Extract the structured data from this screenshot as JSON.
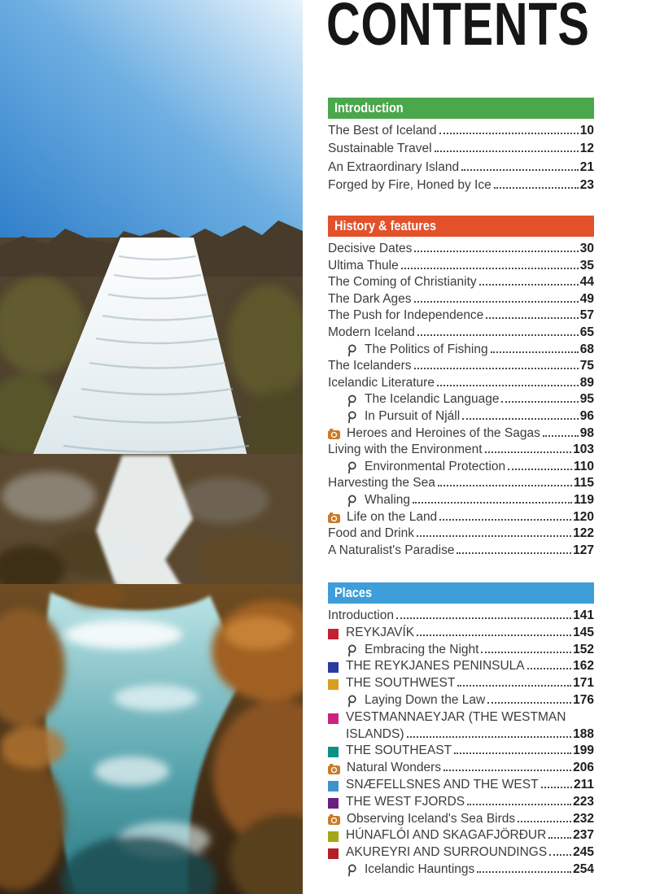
{
  "page_title": "CONTENTS",
  "photo": {
    "name": "waterfall-photo"
  },
  "icons": {
    "magnifier_color": "#3a3a3a",
    "camera_color": "#c87b28"
  },
  "sections": [
    {
      "label": "Introduction",
      "color": "#4aa74b",
      "entries": [
        {
          "type": "plain",
          "label": "The Best of Iceland",
          "page": "10"
        },
        {
          "type": "plain",
          "label": "Sustainable Travel",
          "page": "12"
        },
        {
          "type": "plain",
          "label": "An Extraordinary Island",
          "page": "21"
        },
        {
          "type": "plain",
          "label": "Forged by Fire, Honed by Ice",
          "page": "23"
        }
      ]
    },
    {
      "label": "History & features",
      "color": "#e2512a",
      "entries": [
        {
          "type": "plain",
          "label": "Decisive Dates",
          "page": "30"
        },
        {
          "type": "plain",
          "label": "Ultima Thule",
          "page": "35"
        },
        {
          "type": "plain",
          "label": "The Coming of Christianity",
          "page": "44"
        },
        {
          "type": "plain",
          "label": "The Dark Ages",
          "page": "49"
        },
        {
          "type": "plain",
          "label": "The Push for Independence",
          "page": "57"
        },
        {
          "type": "plain",
          "label": "Modern Iceland",
          "page": "65"
        },
        {
          "type": "magnifier",
          "label": "The Politics of Fishing",
          "page": "68"
        },
        {
          "type": "plain",
          "label": "The Icelanders",
          "page": "75"
        },
        {
          "type": "plain",
          "label": "Icelandic Literature",
          "page": "89"
        },
        {
          "type": "magnifier",
          "label": "The Icelandic Language",
          "page": "95"
        },
        {
          "type": "magnifier",
          "label": "In Pursuit of Njáll",
          "page": "96"
        },
        {
          "type": "photo",
          "label": "Heroes and Heroines of the Sagas",
          "page": "98"
        },
        {
          "type": "plain",
          "label": "Living with the Environment",
          "page": "103"
        },
        {
          "type": "magnifier",
          "label": "Environmental Protection",
          "page": "110"
        },
        {
          "type": "plain",
          "label": "Harvesting the Sea",
          "page": "115"
        },
        {
          "type": "magnifier",
          "label": "Whaling",
          "page": "119"
        },
        {
          "type": "photo",
          "label": "Life on the Land",
          "page": "120"
        },
        {
          "type": "plain",
          "label": "Food and Drink",
          "page": "122"
        },
        {
          "type": "plain",
          "label": "A Naturalist's Paradise",
          "page": "127"
        }
      ]
    },
    {
      "label": "Places",
      "color": "#3d9ed9",
      "entries": [
        {
          "type": "plain",
          "label": "Introduction",
          "page": "141"
        },
        {
          "type": "chapter",
          "label": "REYKJAVÍK",
          "page": "145",
          "marker": "#c22133"
        },
        {
          "type": "magnifier",
          "label": "Embracing the Night",
          "page": "152"
        },
        {
          "type": "chapter",
          "label": "THE REYKJANES PENINSULA",
          "page": "162",
          "marker": "#2c3a9e"
        },
        {
          "type": "chapter",
          "label": "THE SOUTHWEST",
          "page": "171",
          "marker": "#d99d1f"
        },
        {
          "type": "magnifier",
          "label": "Laying Down the Law",
          "page": "176"
        },
        {
          "type": "chapter",
          "label": "VESTMANNAEYJAR (THE WESTMAN ISLANDS)",
          "page": "188",
          "marker": "#c9247f",
          "wrap": [
            "VESTMANNAEYJAR (THE WESTMAN",
            "ISLANDS)"
          ]
        },
        {
          "type": "chapter",
          "label": "THE SOUTHEAST",
          "page": "199",
          "marker": "#0a9184"
        },
        {
          "type": "photo",
          "label": "Natural Wonders",
          "page": "206"
        },
        {
          "type": "chapter",
          "label": "SNÆFELLSNES AND THE WEST",
          "page": "211",
          "marker": "#3f93cd"
        },
        {
          "type": "chapter",
          "label": "THE WEST FJORDS",
          "page": "223",
          "marker": "#6b2080"
        },
        {
          "type": "photo",
          "label": "Observing Iceland's Sea Birds",
          "page": "232"
        },
        {
          "type": "chapter",
          "label": "HÚNAFLÓI AND SKAGAFJÖRÐUR",
          "page": "237",
          "marker": "#a3a818"
        },
        {
          "type": "chapter",
          "label": "AKUREYRI AND SURROUNDINGS",
          "page": "245",
          "marker": "#b32025"
        },
        {
          "type": "magnifier",
          "label": "Icelandic Hauntings",
          "page": "254"
        }
      ]
    }
  ]
}
